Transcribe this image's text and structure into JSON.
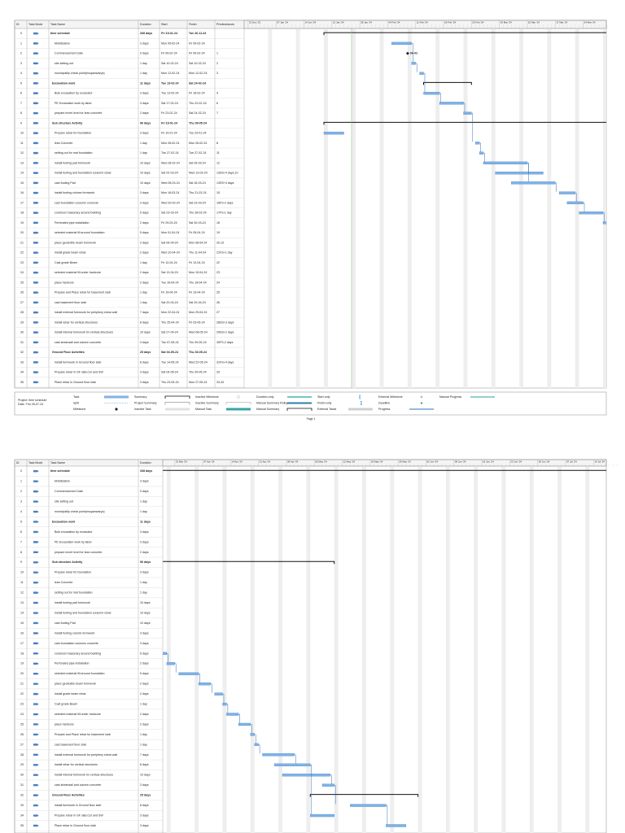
{
  "header": {
    "id": "ID",
    "mode": "Task Mode",
    "name": "Task Name",
    "duration": "Duration",
    "start": "Start",
    "finish": "Finish",
    "predecessors": "Predecessors"
  },
  "timescale": {
    "page1_weeks": [
      "31 Dec '23",
      "07 Jan '24",
      "14 Jan '24",
      "21 Jan '24",
      "28 Jan '24",
      "04 Feb '24",
      "11 Feb '24",
      "18 Feb '24",
      "25 Feb '24",
      "03 Mar '24",
      "10 Mar '24",
      "17 Mar '24",
      "24 Mar '24"
    ],
    "page2_weeks": [
      "31 Mar '24",
      "07 Apr '24",
      "14 Apr '24",
      "21 Apr '24",
      "28 Apr '24",
      "05 May '24",
      "12 May '24",
      "19 May '24",
      "26 May '24",
      "02 Jun '24",
      "09 Jun '24",
      "16 Jun '24",
      "23 Jun '24",
      "30 Jun '24",
      "07 Jul '24",
      "14 Jul '24"
    ]
  },
  "tasks": [
    {
      "id": 0,
      "name": "time schedule",
      "duration": "268 days",
      "start": "Fri 19-01-24",
      "finish": "Tue 26-11-24",
      "summary": true
    },
    {
      "id": 1,
      "name": "Mobilization",
      "duration": "3 days",
      "start": "Mon 05-02-24",
      "finish": "Fri 09-02-24"
    },
    {
      "id": 2,
      "name": "Commencement Date",
      "duration": "0 days",
      "start": "Fri 09-02-24",
      "finish": "Fri 09-02-24",
      "predecessors": "1",
      "milestone_label": "09-02"
    },
    {
      "id": 3,
      "name": "site setting out",
      "duration": "1 day",
      "start": "Sat 10-02-24",
      "finish": "Sat 10-02-24",
      "predecessors": "2"
    },
    {
      "id": 4,
      "name": "municipality check point(muqawwarya)",
      "duration": "1 day",
      "start": "Mon 12-02-24",
      "finish": "Mon 12-02-24",
      "predecessors": "3"
    },
    {
      "id": 5,
      "name": "Excavation work",
      "duration": "11 days",
      "start": "Tue 13-02-24",
      "finish": "Sat 24-02-24",
      "summary": true
    },
    {
      "id": 6,
      "name": "Bulk excavation by excavator",
      "duration": "3 days",
      "start": "Tue 13-02-24",
      "finish": "Fri 16-02-24",
      "predecessors": "4"
    },
    {
      "id": 7,
      "name": "PE Excavation work by labor",
      "duration": "3 days",
      "start": "Sat 17-02-24",
      "finish": "Thu 22-02-24",
      "predecessors": "6"
    },
    {
      "id": 8,
      "name": "prepare invert level for lean concrete",
      "duration": "2 days",
      "start": "Fri 23-02-24",
      "finish": "Sat 24-02-24",
      "predecessors": "7"
    },
    {
      "id": 9,
      "name": "Sub structure Activity",
      "duration": "96 days",
      "start": "Fri 19-01-24",
      "finish": "Thu 09-05-24",
      "summary": true
    },
    {
      "id": 10,
      "name": "Prepare rebar for foundation",
      "duration": "3 days",
      "start": "Fri 19-01-24",
      "finish": "Tue 23-01-24"
    },
    {
      "id": 11,
      "name": "lean Concrete",
      "duration": "1 day",
      "start": "Mon 26-02-24",
      "finish": "Mon 26-02-24",
      "predecessors": "8"
    },
    {
      "id": 12,
      "name": "setting out for mat foundation",
      "duration": "1 day",
      "start": "Tue 27-02-24",
      "finish": "Tue 27-02-24",
      "predecessors": "11"
    },
    {
      "id": 13,
      "name": "install footing pad formwork",
      "duration": "10 days",
      "start": "Wed 28-02-24",
      "finish": "Sat 09-03-24",
      "predecessors": "12"
    },
    {
      "id": 14,
      "name": "install footing and foundation coulumn rebar",
      "duration": "10 days",
      "start": "Sat 02-03-24",
      "finish": "Wed 13-03-24",
      "predecessors": "13SS+4 days,10"
    },
    {
      "id": 15,
      "name": "cast footing Pad",
      "duration": "10 days",
      "start": "Wed 06-03-24",
      "finish": "Sat 16-03-24",
      "predecessors": "13SS+4 days"
    },
    {
      "id": 16,
      "name": "install footing column formwork",
      "duration": "3 days",
      "start": "Mon 18-03-24",
      "finish": "Thu 21-03-24",
      "predecessors": "15"
    },
    {
      "id": 17,
      "name": "cast foundation coulumn concrete",
      "duration": "3 days",
      "start": "Wed 20-03-24",
      "finish": "Sat 23-03-24",
      "predecessors": "16FS-2 days"
    },
    {
      "id": 18,
      "name": "construct masonary around building",
      "duration": "5 days",
      "start": "Sat 23-03-24",
      "finish": "Thu 28-03-24",
      "predecessors": "17FS-1 day"
    },
    {
      "id": 19,
      "name": "Perforated pipe installation",
      "duration": "2 days",
      "start": "Fri 29-03-24",
      "finish": "Sat 30-03-24",
      "predecessors": "18"
    },
    {
      "id": 20,
      "name": "selected material fill around foundation",
      "duration": "5 days",
      "start": "Mon 01-04-24",
      "finish": "Fri 05-04-24",
      "predecessors": "19"
    },
    {
      "id": 21,
      "name": "place geotextile beam formwork",
      "duration": "2 days",
      "start": "Sat 06-04-24",
      "finish": "Mon 08-04-24",
      "predecessors": "20,19"
    },
    {
      "id": 22,
      "name": "install grade beam rebar",
      "duration": "2 days",
      "start": "Wed 10-04-24",
      "finish": "Thu 11-04-24",
      "predecessors": "21FS+1 day"
    },
    {
      "id": 23,
      "name": "Cast grade Beam",
      "duration": "1 day",
      "start": "Fri 12-04-24",
      "finish": "Fri 12-04-24",
      "predecessors": "22"
    },
    {
      "id": 24,
      "name": "selected material fill under hardcore",
      "duration": "2 days",
      "start": "Sat 13-04-24",
      "finish": "Mon 15-04-24",
      "predecessors": "23"
    },
    {
      "id": 25,
      "name": "place hardcore",
      "duration": "2 days",
      "start": "Tue 16-04-24",
      "finish": "Thu 18-04-24",
      "predecessors": "24"
    },
    {
      "id": 26,
      "name": "Prepare and Place rebar for basement slab",
      "duration": "1 day",
      "start": "Fri 19-04-24",
      "finish": "Fri 19-04-24",
      "predecessors": "25"
    },
    {
      "id": 27,
      "name": "cast basement floor slab",
      "duration": "1 day",
      "start": "Sat 20-04-24",
      "finish": "Sat 20-04-24",
      "predecessors": "26"
    },
    {
      "id": 28,
      "name": "install external formwork for periphery shear wall",
      "duration": "7 days",
      "start": "Mon 22-04-24",
      "finish": "Mon 29-04-24",
      "predecessors": "27"
    },
    {
      "id": 29,
      "name": "install rebar for vertical structures",
      "duration": "8 days",
      "start": "Thu 25-04-24",
      "finish": "Fri 03-05-24",
      "predecessors": "28SS+3 days"
    },
    {
      "id": 30,
      "name": "install internal formwork for vertical structures",
      "duration": "10 days",
      "start": "Sat 27-04-24",
      "finish": "Wed 08-05-24",
      "predecessors": "29SS+2 days"
    },
    {
      "id": 31,
      "name": "cast shearwall and column concrete",
      "duration": "3 days",
      "start": "Tue 07-05-24",
      "finish": "Thu 09-05-24",
      "predecessors": "30FS-2 days"
    },
    {
      "id": 32,
      "name": "Ground Floor Activities",
      "duration": "25 days",
      "start": "Sat 04-05-24",
      "finish": "Thu 30-05-24",
      "summary": true
    },
    {
      "id": 33,
      "name": "install formwork in Ground floor slab",
      "duration": "8 days",
      "start": "Tue 14-05-24",
      "finish": "Wed 22-05-24",
      "predecessors": "31FS+4 days"
    },
    {
      "id": 34,
      "name": "Prepare rebar in GF slab,Col and SW",
      "duration": "3 days",
      "start": "Sat 04-05-24",
      "finish": "Thu 09-05-24",
      "predecessors": "29"
    },
    {
      "id": 35,
      "name": "Place rebar in Ground floor slab",
      "duration": "3 days",
      "start": "Thu 23-05-24",
      "finish": "Mon 27-05-24",
      "predecessors": "33,34"
    }
  ],
  "legend": {
    "project": "Project: time schedule",
    "date": "Date: Thu 25-07-24",
    "items": [
      "Task",
      "Split",
      "Milestone",
      "Summary",
      "Project Summary",
      "Inactive Task",
      "Inactive Milestone",
      "Inactive Summary",
      "Manual Task",
      "Duration-only",
      "Manual Summary Rollup",
      "Manual Summary",
      "Start-only",
      "Finish-only",
      "External Tasks",
      "External Milestone",
      "Deadline",
      "Progress",
      "Manual Progress"
    ]
  },
  "footer": "Page 1"
}
